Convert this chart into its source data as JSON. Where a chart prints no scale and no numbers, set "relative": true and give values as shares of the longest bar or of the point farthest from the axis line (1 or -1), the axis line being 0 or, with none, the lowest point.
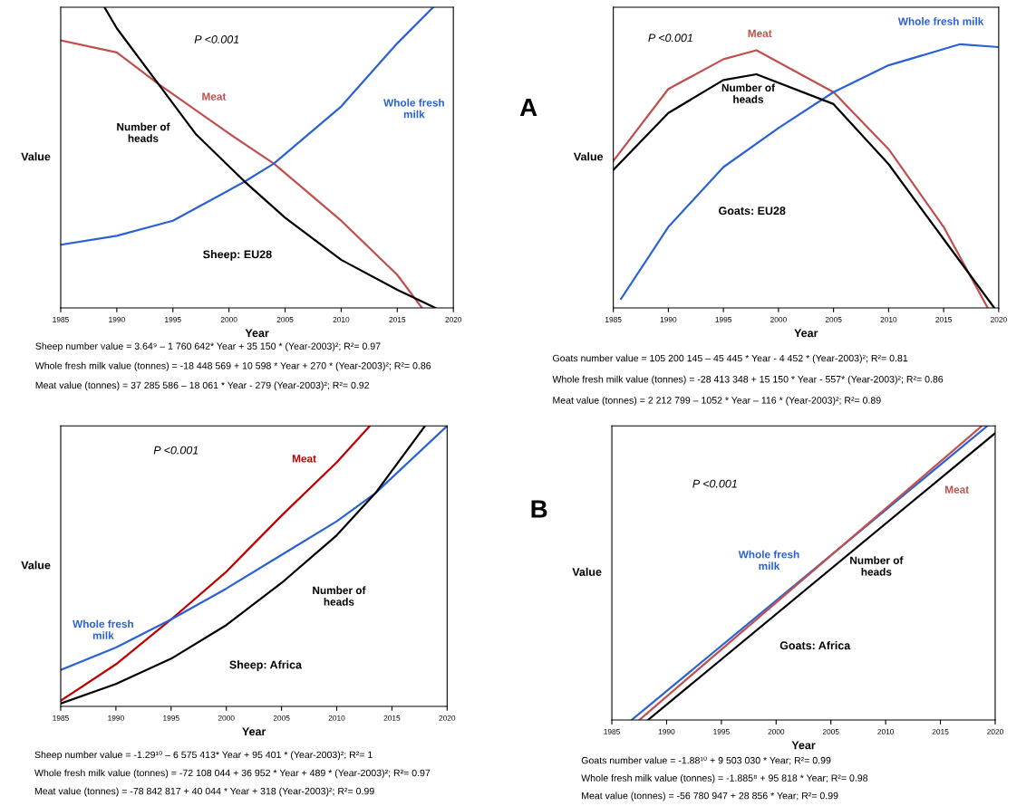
{
  "chart_data": [
    {
      "type": "line",
      "relative": true,
      "xlabel": "Year",
      "ylabel": "Value",
      "xlim": [
        1985,
        2020
      ],
      "xticks": [
        1985,
        1990,
        1995,
        2000,
        2005,
        2010,
        2015,
        2020
      ],
      "grid": false,
      "legend": false,
      "marker": "none",
      "line_style": "solid",
      "series": [
        {
          "name": "Meat",
          "color": "#c0504d",
          "x": [
            1985,
            1990,
            1993.7,
            2000,
            2004,
            2010,
            2015,
            2017.2
          ],
          "values": [
            0.89,
            0.85,
            0.745,
            0.58,
            0.48,
            0.29,
            0.11,
            0
          ]
        },
        {
          "name": "Whole fresh\nmilk",
          "color": "#2a62d4",
          "x": [
            1985,
            1990,
            1995,
            2001.4,
            2004,
            2010,
            2015,
            2018.2
          ],
          "values": [
            0.21,
            0.24,
            0.29,
            0.42,
            0.48,
            0.67,
            0.88,
            1.0
          ]
        },
        {
          "name": "Number of\nheads",
          "color": "#000000",
          "x": [
            1988.9,
            1990,
            1993.7,
            1997,
            2001.4,
            2005,
            2010,
            2015,
            2018.4
          ],
          "values": [
            1.0,
            0.93,
            0.745,
            0.58,
            0.42,
            0.3,
            0.16,
            0.06,
            0
          ]
        }
      ],
      "annotations": [
        "P <0.001",
        "Sheep: EU28",
        "Sheep number value = 3.64⁹ – 1 760 642* Year + 35 150 * (Year-2003)²; R²= 0.97",
        "Whole fresh milk value (tonnes) = -18 448 569 + 10 598 * Year + 270 * (Year-2003)²; R²= 0.86",
        "Meat value (tonnes) = 37 285 586 – 18 061 * Year - 279 (Year-2003)²; R²= 0.92"
      ]
    },
    {
      "type": "line",
      "relative": true,
      "xlabel": "Year",
      "ylabel": "Value",
      "xlim": [
        1985,
        2020
      ],
      "xticks": [
        1985,
        1990,
        1995,
        2000,
        2005,
        2010,
        2015,
        2020
      ],
      "grid": false,
      "legend": false,
      "marker": "none",
      "line_style": "solid",
      "series": [
        {
          "name": "Meat",
          "color": "#c0504d",
          "x": [
            1985,
            1990,
            1995,
            1998,
            2005,
            2010,
            2015,
            2019
          ],
          "values": [
            0.557,
            0.83,
            0.943,
            0.977,
            0.818,
            0.602,
            0.307,
            0
          ]
        },
        {
          "name": "Whole fresh milk",
          "color": "#2a62d4",
          "x": [
            1985.7,
            1990,
            1995,
            2000,
            2005,
            2010,
            2016.5,
            2020
          ],
          "values": [
            0.034,
            0.307,
            0.534,
            0.682,
            0.818,
            0.92,
            1.0,
            0.989
          ]
        },
        {
          "name": "Number of\nheads",
          "color": "#000000",
          "x": [
            1985,
            1990,
            1995,
            1998,
            2005,
            2010,
            2015,
            2019.6
          ],
          "values": [
            0.523,
            0.739,
            0.864,
            0.886,
            0.773,
            0.545,
            0.261,
            0
          ]
        }
      ],
      "annotations": [
        "P <0.001",
        "Goats: EU28",
        "Goats number value = 105 200 145 – 45 445 * Year - 4 452 * (Year-2003)²; R²= 0.81",
        "Whole fresh milk value (tonnes) = -28 413 348 + 15 150 * Year - 557* (Year-2003)²; R²= 0.86",
        "Meat value (tonnes) = 2 212 799 – 1052 * Year – 116 * (Year-2003)²; R²= 0.89",
        "A"
      ]
    },
    {
      "type": "line",
      "relative": true,
      "xlabel": "Year",
      "ylabel": "Value",
      "xlim": [
        1985,
        2020
      ],
      "xticks": [
        1985,
        1990,
        1995,
        2000,
        2005,
        2010,
        2015,
        2020
      ],
      "grid": false,
      "legend": false,
      "marker": "none",
      "line_style": "solid",
      "series": [
        {
          "name": "Meat",
          "color": "#c00000",
          "x": [
            1985,
            1990,
            1995,
            2000,
            2005,
            2010,
            2013
          ],
          "values": [
            0.02,
            0.15,
            0.31,
            0.48,
            0.68,
            0.87,
            1.0
          ]
        },
        {
          "name": "Whole fresh\nmilk",
          "color": "#2a62d4",
          "x": [
            1985,
            1990,
            1995,
            2000,
            2005,
            2010,
            2013.5,
            2020
          ],
          "values": [
            0.13,
            0.21,
            0.31,
            0.42,
            0.54,
            0.66,
            0.76,
            1.0
          ]
        },
        {
          "name": "Number of\nheads",
          "color": "#000000",
          "x": [
            1985,
            1990,
            1995,
            2000,
            2005,
            2010,
            2013.5,
            2018
          ],
          "values": [
            0.01,
            0.08,
            0.17,
            0.29,
            0.44,
            0.61,
            0.76,
            1.0
          ]
        }
      ],
      "annotations": [
        "P <0.001",
        "Sheep: Africa",
        "Sheep number value = -1.29¹⁰ – 6 575 413* Year + 95 401 * (Year-2003)²; R²= 1",
        "Whole fresh milk value (tonnes) = -72 108 044 + 36 952 * Year + 489 * (Year-2003)²; R²= 0.97",
        "Meat value (tonnes) = -78 842 817 + 40 044 * Year + 318 (Year-2003)²; R²= 0.99"
      ]
    },
    {
      "type": "line",
      "relative": true,
      "xlabel": "Year",
      "ylabel": "Value",
      "xlim": [
        1985,
        2020
      ],
      "xticks": [
        1985,
        1990,
        1995,
        2000,
        2005,
        2010,
        2015,
        2020
      ],
      "grid": false,
      "legend": false,
      "marker": "none",
      "line_style": "solid",
      "series": [
        {
          "name": "Whole fresh\nmilk",
          "color": "#2a62d4",
          "x": [
            1986.8,
            2019.3
          ],
          "values": [
            0,
            1.0
          ]
        },
        {
          "name": "Meat",
          "color": "#c0504d",
          "x": [
            1987.5,
            2018.8
          ],
          "values": [
            0,
            1.0
          ]
        },
        {
          "name": "Number of\nheads",
          "color": "#000000",
          "x": [
            1988.3,
            2020
          ],
          "values": [
            0,
            0.975
          ]
        }
      ],
      "annotations": [
        "P <0.001",
        "Goats: Africa",
        "Goats number value = -1.88¹⁰ + 9 503 030 * Year; R²= 0.99",
        "Whole fresh milk value (tonnes) = -1.885⁸ + 95 818 * Year; R²= 0.98",
        "Meat value (tonnes) = -56 780 947 + 28 856 * Year; R²= 0.99",
        "B"
      ]
    }
  ]
}
